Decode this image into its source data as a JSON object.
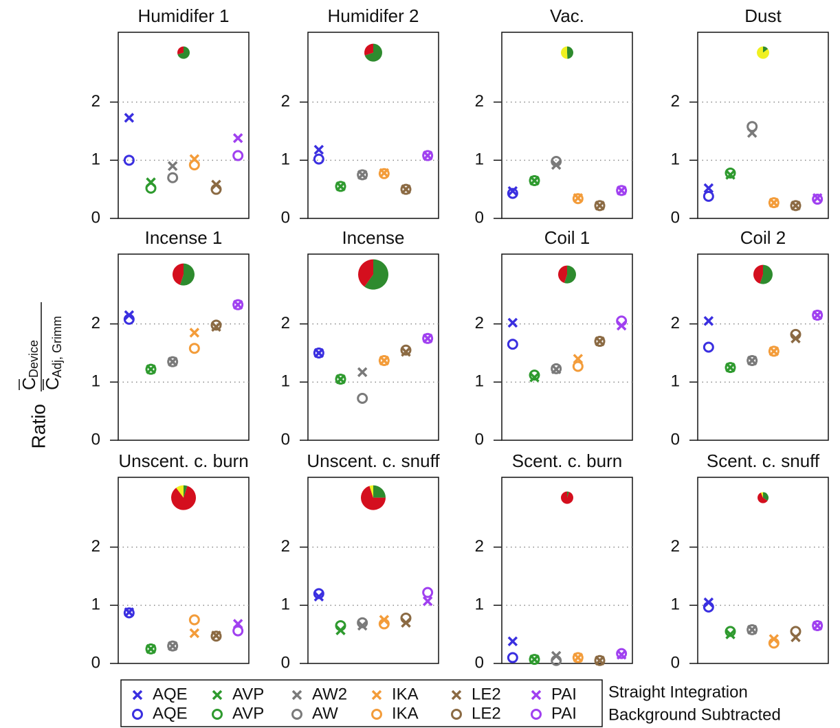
{
  "y_label": {
    "prefix": "Ratio",
    "numerator": "C",
    "numerator_sub": "Device",
    "denominator": "C",
    "denominator_sub": "Adj, Grimm"
  },
  "legend": {
    "colors": [
      "#3a2fe0",
      "#2e9a2e",
      "#7a7a7a",
      "#f39c3a",
      "#8b6a43",
      "#a040f0"
    ],
    "series": [
      {
        "label": "Straight Integration",
        "marker": "x",
        "names": [
          "AQE",
          "AVP",
          "AW2",
          "IKA",
          "LE2",
          "PAI"
        ]
      },
      {
        "label": "Background Subtracted",
        "marker": "o",
        "names": [
          "AQE",
          "AVP",
          "AW",
          "IKA",
          "LE2",
          "PAI"
        ]
      }
    ]
  },
  "chart_data": [
    {
      "type": "scatter",
      "title": "Humidifer 1",
      "ylim": [
        0,
        3.2
      ],
      "yticks": [
        0,
        1,
        2
      ],
      "grid": true,
      "series": [
        {
          "values": [
            1.73,
            0.62,
            0.9,
            1.02,
            0.58,
            1.38
          ]
        },
        {
          "values": [
            1.0,
            0.52,
            0.7,
            0.92,
            0.5,
            1.08
          ]
        }
      ],
      "pie": {
        "colors": [
          "#2e8b2e",
          "#d40f1e",
          "#f0f020"
        ],
        "values": [
          0.57,
          0.24,
          0
        ]
      }
    },
    {
      "type": "scatter",
      "title": "Humidifer 2",
      "ylim": [
        0,
        3.2
      ],
      "yticks": [
        0,
        1,
        2
      ],
      "grid": true,
      "series": [
        {
          "values": [
            1.18,
            0.55,
            0.75,
            0.78,
            0.5,
            1.08
          ]
        },
        {
          "values": [
            1.02,
            0.55,
            0.75,
            0.77,
            0.5,
            1.08
          ]
        }
      ],
      "pie": {
        "colors": [
          "#2e8b2e",
          "#d40f1e",
          "#f0f020"
        ],
        "values": [
          1.18,
          0.51,
          0
        ]
      }
    },
    {
      "type": "scatter",
      "title": "Vac.",
      "ylim": [
        0,
        3.2
      ],
      "yticks": [
        0,
        1,
        2
      ],
      "grid": true,
      "series": [
        {
          "values": [
            0.47,
            0.65,
            0.92,
            0.35,
            0.22,
            0.48
          ]
        },
        {
          "values": [
            0.43,
            0.65,
            0.98,
            0.34,
            0.22,
            0.48
          ]
        }
      ],
      "pie": {
        "colors": [
          "#2e8b2e",
          "#d40f1e",
          "#f0f020"
        ],
        "values": [
          0.4,
          0,
          0.41
        ]
      }
    },
    {
      "type": "scatter",
      "title": "Dust",
      "ylim": [
        0,
        3.2
      ],
      "yticks": [
        0,
        1,
        2
      ],
      "grid": true,
      "series": [
        {
          "values": [
            0.52,
            0.75,
            1.47,
            0.27,
            0.22,
            0.35
          ]
        },
        {
          "values": [
            0.38,
            0.78,
            1.58,
            0.27,
            0.22,
            0.33
          ]
        }
      ],
      "pie": {
        "colors": [
          "#2e8b2e",
          "#d40f1e",
          "#f0f020"
        ],
        "values": [
          0.12,
          0,
          0.69
        ]
      }
    },
    {
      "type": "scatter",
      "title": "Incense 1",
      "ylim": [
        0,
        3.2
      ],
      "yticks": [
        0,
        1,
        2
      ],
      "grid": true,
      "series": [
        {
          "values": [
            2.15,
            1.22,
            1.35,
            1.85,
            1.95,
            2.33
          ]
        },
        {
          "values": [
            2.08,
            1.22,
            1.35,
            1.58,
            1.98,
            2.33
          ]
        }
      ],
      "pie": {
        "colors": [
          "#2e8b2e",
          "#d40f1e",
          "#f0f020"
        ],
        "values": [
          1.41,
          1.15,
          0
        ]
      }
    },
    {
      "type": "scatter",
      "title": "Incense",
      "ylim": [
        0,
        3.2
      ],
      "yticks": [
        0,
        1,
        2
      ],
      "grid": true,
      "series": [
        {
          "values": [
            1.5,
            1.05,
            1.17,
            1.37,
            1.52,
            1.75
          ]
        },
        {
          "values": [
            1.5,
            1.05,
            0.72,
            1.37,
            1.55,
            1.75
          ]
        }
      ],
      "pie": {
        "colors": [
          "#2e8b2e",
          "#d40f1e",
          "#f0f020"
        ],
        "values": [
          2.9,
          1.94,
          0
        ]
      }
    },
    {
      "type": "scatter",
      "title": "Coil 1",
      "ylim": [
        0,
        3.2
      ],
      "yticks": [
        0,
        1,
        2
      ],
      "grid": true,
      "series": [
        {
          "values": [
            2.02,
            1.08,
            1.22,
            1.4,
            1.7,
            1.97
          ]
        },
        {
          "values": [
            1.65,
            1.12,
            1.23,
            1.27,
            1.7,
            2.05
          ]
        }
      ],
      "pie": {
        "colors": [
          "#2e8b2e",
          "#d40f1e",
          "#f0f020"
        ],
        "values": [
          0.93,
          0.76,
          0
        ]
      }
    },
    {
      "type": "scatter",
      "title": "Coil 2",
      "ylim": [
        0,
        3.2
      ],
      "yticks": [
        0,
        1,
        2
      ],
      "grid": true,
      "series": [
        {
          "values": [
            2.05,
            1.25,
            1.37,
            1.53,
            1.75,
            2.15
          ]
        },
        {
          "values": [
            1.6,
            1.25,
            1.37,
            1.53,
            1.82,
            2.15
          ]
        }
      ],
      "pie": {
        "colors": [
          "#2e8b2e",
          "#d40f1e",
          "#f0f020"
        ],
        "values": [
          1.08,
          0.88,
          0
        ]
      }
    },
    {
      "type": "scatter",
      "title": "Unscent. c. burn",
      "ylim": [
        0,
        3.2
      ],
      "yticks": [
        0,
        1,
        2
      ],
      "grid": true,
      "series": [
        {
          "values": [
            0.88,
            0.25,
            0.3,
            0.52,
            0.48,
            0.68
          ]
        },
        {
          "values": [
            0.87,
            0.25,
            0.3,
            0.75,
            0.47,
            0.56
          ]
        }
      ],
      "pie": {
        "colors": [
          "#2e8b2e",
          "#d40f1e",
          "#f0f020"
        ],
        "values": [
          0.16,
          2.75,
          0.33
        ]
      }
    },
    {
      "type": "scatter",
      "title": "Unscent. c. snuff",
      "ylim": [
        0,
        3.2
      ],
      "yticks": [
        0,
        1,
        2
      ],
      "grid": true,
      "series": [
        {
          "values": [
            1.15,
            0.57,
            0.65,
            0.75,
            0.7,
            1.07
          ]
        },
        {
          "values": [
            1.2,
            0.65,
            0.7,
            0.68,
            0.78,
            1.22
          ]
        }
      ],
      "pie": {
        "colors": [
          "#2e8b2e",
          "#d40f1e",
          "#f0f020"
        ],
        "values": [
          0.81,
          2.27,
          0.16
        ]
      }
    },
    {
      "type": "scatter",
      "title": "Scent. c. burn",
      "ylim": [
        0,
        3.2
      ],
      "yticks": [
        0,
        1,
        2
      ],
      "grid": true,
      "series": [
        {
          "values": [
            0.38,
            0.07,
            0.13,
            0.1,
            0.05,
            0.15
          ]
        },
        {
          "values": [
            0.1,
            0.07,
            0.05,
            0.1,
            0.05,
            0.17
          ]
        }
      ],
      "pie": {
        "colors": [
          "#2e8b2e",
          "#d40f1e",
          "#f0f020"
        ],
        "values": [
          0.04,
          0.77,
          0
        ]
      }
    },
    {
      "type": "scatter",
      "title": "Scent. c. snuff",
      "ylim": [
        0,
        3.2
      ],
      "yticks": [
        0,
        1,
        2
      ],
      "grid": true,
      "series": [
        {
          "values": [
            1.05,
            0.5,
            0.58,
            0.42,
            0.45,
            0.65
          ]
        },
        {
          "values": [
            0.97,
            0.55,
            0.58,
            0.35,
            0.55,
            0.65
          ]
        }
      ],
      "pie": {
        "colors": [
          "#2e8b2e",
          "#d40f1e",
          "#f0f020"
        ],
        "values": [
          0.22,
          0.38,
          0.04
        ]
      }
    }
  ]
}
